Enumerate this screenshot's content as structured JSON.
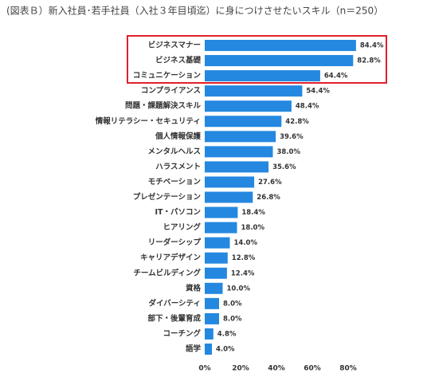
{
  "chart_data": {
    "type": "hbar",
    "title": "(図表Ｂ）新入社員･若手社員（入社３年目頃迄）に身につけさせたいスキル（n＝250）",
    "categories": [
      "ビジネスマナー",
      "ビジネス基礎",
      "コミュニケーション",
      "コンプライアンス",
      "問題・課題解決スキル",
      "情報リテラシー・セキュリティ",
      "個人情報保護",
      "メンタルヘルス",
      "ハラスメント",
      "モチベーション",
      "プレゼンテーション",
      "IT・パソコン",
      "ヒアリング",
      "リーダーシップ",
      "キャリアデザイン",
      "チームビルディング",
      "資格",
      "ダイバーシティ",
      "部下・後輩育成",
      "コーチング",
      "語学"
    ],
    "values": [
      84.4,
      82.8,
      64.4,
      54.4,
      48.4,
      42.8,
      39.6,
      38.0,
      35.6,
      27.6,
      26.8,
      18.4,
      18.0,
      14.0,
      12.8,
      12.4,
      10.0,
      8.0,
      8.0,
      4.8,
      4.0
    ],
    "value_labels": [
      "84.4%",
      "82.8%",
      "64.4%",
      "54.4%",
      "48.4%",
      "42.8%",
      "39.6%",
      "38.0%",
      "35.6%",
      "27.6%",
      "26.8%",
      "18.4%",
      "18.0%",
      "14.0%",
      "12.8%",
      "12.4%",
      "10.0%",
      "8.0%",
      "8.0%",
      "4.8%",
      "4.0%"
    ],
    "color": "#2488e0",
    "xlim": [
      0,
      90
    ],
    "xticks": [
      {
        "value": 0,
        "label": "0%"
      },
      {
        "value": 20,
        "label": "20%"
      },
      {
        "value": 40,
        "label": "40%"
      },
      {
        "value": 60,
        "label": "60%"
      },
      {
        "value": 80,
        "label": "80%"
      }
    ],
    "grid": false
  }
}
